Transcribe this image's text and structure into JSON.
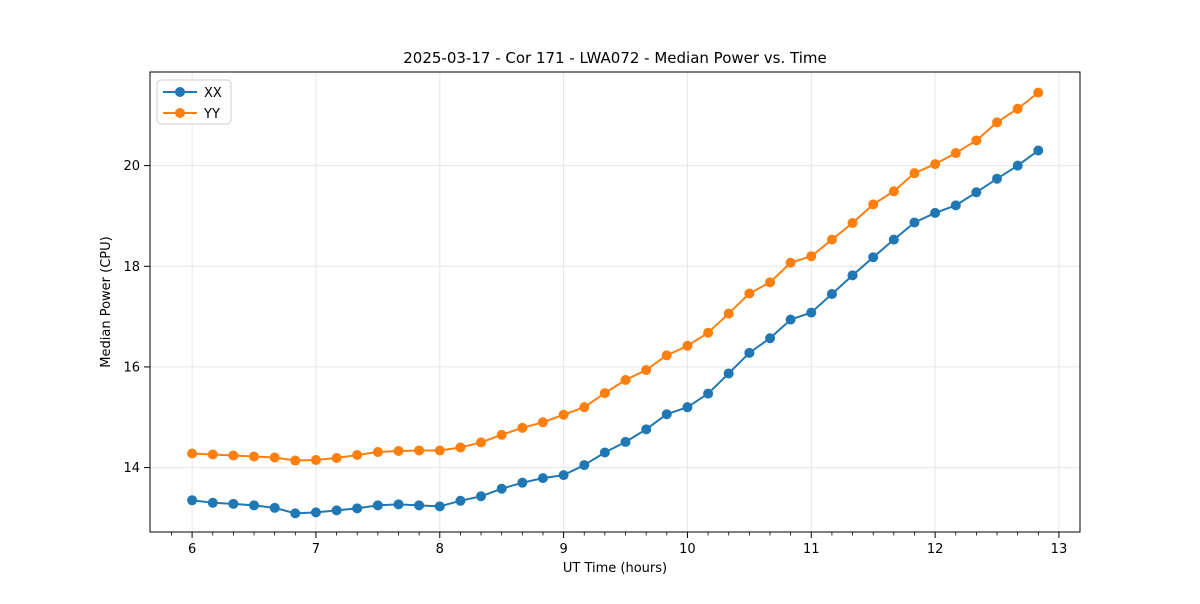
{
  "chart_data": {
    "type": "line",
    "title": "2025-03-17 - Cor 171 - LWA072 - Median Power vs. Time",
    "xlabel": "UT Time (hours)",
    "ylabel": "Median Power (CPU)",
    "xlim": [
      5.66,
      13.17
    ],
    "ylim": [
      12.72,
      21.86
    ],
    "x_ticks": [
      6,
      7,
      8,
      9,
      10,
      11,
      12,
      13
    ],
    "y_ticks": [
      14,
      16,
      18,
      20
    ],
    "x_minor_tick_step": 0.166667,
    "grid": true,
    "legend_position": "upper-left",
    "x": [
      6.0,
      6.167,
      6.333,
      6.5,
      6.667,
      6.833,
      7.0,
      7.167,
      7.333,
      7.5,
      7.667,
      7.833,
      8.0,
      8.167,
      8.333,
      8.5,
      8.667,
      8.833,
      9.0,
      9.167,
      9.333,
      9.5,
      9.667,
      9.833,
      10.0,
      10.167,
      10.333,
      10.5,
      10.667,
      10.833,
      11.0,
      11.167,
      11.333,
      11.5,
      11.667,
      11.833,
      12.0,
      12.167,
      12.333,
      12.5,
      12.667,
      12.833
    ],
    "series": [
      {
        "name": "XX",
        "color": "#1f77b4",
        "values": [
          13.35,
          13.3,
          13.28,
          13.25,
          13.2,
          13.09,
          13.11,
          13.15,
          13.19,
          13.25,
          13.27,
          13.25,
          13.23,
          13.34,
          13.43,
          13.58,
          13.7,
          13.79,
          13.85,
          14.05,
          14.3,
          14.51,
          14.76,
          15.06,
          15.2,
          15.47,
          15.87,
          16.28,
          16.57,
          16.94,
          17.08,
          17.45,
          17.82,
          18.18,
          18.53,
          18.87,
          19.06,
          19.21,
          19.47,
          19.74,
          20.0,
          20.3
        ]
      },
      {
        "name": "YY",
        "color": "#ff7f0e",
        "values": [
          14.28,
          14.26,
          14.24,
          14.22,
          14.2,
          14.14,
          14.15,
          14.19,
          14.25,
          14.31,
          14.33,
          14.34,
          14.34,
          14.4,
          14.5,
          14.65,
          14.79,
          14.9,
          15.05,
          15.2,
          15.48,
          15.74,
          15.94,
          16.23,
          16.42,
          16.68,
          17.06,
          17.46,
          17.68,
          18.07,
          18.2,
          18.53,
          18.86,
          19.23,
          19.49,
          19.85,
          20.03,
          20.25,
          20.5,
          20.86,
          21.13,
          21.45
        ]
      }
    ]
  },
  "style": {
    "grid_color": "#e6e6e6",
    "spine_color": "#000000",
    "background_color": "#ffffff",
    "marker_radius": 5,
    "line_width": 2
  }
}
